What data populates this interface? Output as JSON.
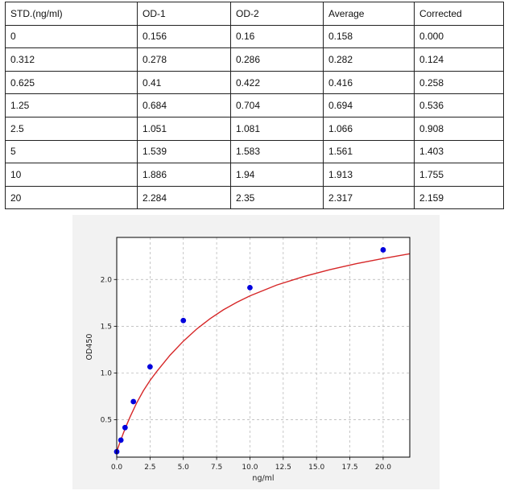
{
  "table": {
    "headers": [
      "STD.(ng/ml)",
      "OD-1",
      "OD-2",
      "Average",
      "Corrected"
    ],
    "rows": [
      [
        "0",
        "0.156",
        "0.16",
        "0.158",
        "0.000"
      ],
      [
        "0.312",
        "0.278",
        "0.286",
        "0.282",
        "0.124"
      ],
      [
        "0.625",
        "0.41",
        "0.422",
        "0.416",
        "0.258"
      ],
      [
        "1.25",
        "0.684",
        "0.704",
        "0.694",
        "0.536"
      ],
      [
        "2.5",
        "1.051",
        "1.081",
        "1.066",
        "0.908"
      ],
      [
        "5",
        "1.539",
        "1.583",
        "1.561",
        "1.403"
      ],
      [
        "10",
        "1.886",
        "1.94",
        "1.913",
        "1.755"
      ],
      [
        "20",
        "2.284",
        "2.35",
        "2.317",
        "2.159"
      ]
    ]
  },
  "chart_data": {
    "type": "scatter",
    "xlabel": "ng/ml",
    "ylabel": "OD450",
    "xlim": [
      0,
      22
    ],
    "ylim": [
      0.1,
      2.45
    ],
    "x_ticks": [
      0,
      2.5,
      5,
      7.5,
      10,
      12.5,
      15,
      17.5,
      20
    ],
    "x_tick_labels": [
      "0.0",
      "2.5",
      "5.0",
      "7.5",
      "10.0",
      "12.5",
      "15.0",
      "17.5",
      "20.0"
    ],
    "y_ticks": [
      0.5,
      1.0,
      1.5,
      2.0
    ],
    "y_tick_labels": [
      "0.5",
      "1.0",
      "1.5",
      "2.0"
    ],
    "grid": true,
    "points": {
      "x": [
        0,
        0.312,
        0.625,
        1.25,
        2.5,
        5,
        10,
        20
      ],
      "y": [
        0.158,
        0.282,
        0.416,
        0.694,
        1.066,
        1.561,
        1.913,
        2.317
      ]
    },
    "fit_curve": {
      "x": [
        0,
        0.25,
        0.5,
        0.75,
        1,
        1.5,
        2,
        2.5,
        3,
        4,
        5,
        6,
        7,
        8,
        9,
        10,
        12,
        14,
        16,
        18,
        20,
        22
      ],
      "y": [
        0.16,
        0.262,
        0.357,
        0.446,
        0.53,
        0.681,
        0.81,
        0.92,
        1.015,
        1.19,
        1.34,
        1.47,
        1.58,
        1.675,
        1.755,
        1.825,
        1.94,
        2.03,
        2.105,
        2.17,
        2.225,
        2.275
      ]
    },
    "colors": {
      "points": "#0000dd",
      "curve": "#d62728",
      "grid": "#b0b0b0",
      "panel_background": "#f2f2f2",
      "plot_background": "#ffffff"
    }
  }
}
